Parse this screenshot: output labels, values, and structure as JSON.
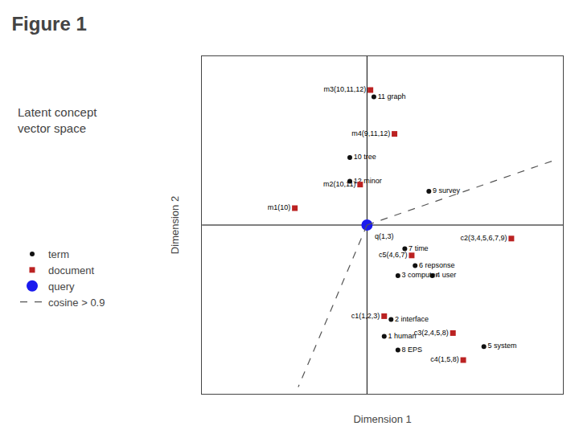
{
  "chart_data": {
    "type": "scatter",
    "title": "Figure 1",
    "subtitle": "Latent concept\nvector space",
    "xlabel": "Dimension 1",
    "ylabel": "Dimension 2",
    "xlim": [
      0.0,
      1.05
    ],
    "ylim": [
      0.0,
      1.0
    ],
    "tick_labels": false,
    "grid": false,
    "legend": "left",
    "axhline": 0.5,
    "axvline": 0.48,
    "series": [
      {
        "name": "term",
        "type": "scatter",
        "marker": "circle",
        "color": "#111111",
        "x": [
          0.5,
          0.43,
          0.43,
          0.66,
          0.59,
          0.62,
          0.57,
          0.67,
          0.55,
          0.53,
          0.57,
          0.82
        ],
        "values": [
          0.88,
          0.7,
          0.63,
          0.6,
          0.43,
          0.38,
          0.35,
          0.35,
          0.22,
          0.17,
          0.13,
          0.14
        ],
        "labels": [
          "11 graph",
          "10 tree",
          "12 minor",
          "9 survey",
          "7 time",
          "6 repsonse",
          "3 computer",
          "4 user",
          "2 interface",
          "1 human",
          "8 EPS",
          "5 system"
        ]
      },
      {
        "name": "document",
        "type": "scatter",
        "marker": "square",
        "color": "#bb2222",
        "x": [
          0.49,
          0.56,
          0.46,
          0.27,
          0.61,
          0.53,
          0.73,
          0.76,
          0.9
        ],
        "values": [
          0.9,
          0.77,
          0.62,
          0.55,
          0.41,
          0.23,
          0.18,
          0.1,
          0.46
        ],
        "labels": [
          "m3(10,11,12)",
          "m4(9,11,12)",
          "m2(10,11)",
          "m1(10)",
          "c5(4,6,7)",
          "c1(1,2,3)",
          "c3(2,4,5,8)",
          "c4(1,5,8)",
          "c2(3,4,5,6,7,9)"
        ]
      },
      {
        "name": "query",
        "type": "scatter",
        "marker": "circle",
        "color": "#1a1aee",
        "x": [
          0.48
        ],
        "values": [
          0.5
        ],
        "labels": [
          "q(1,3)"
        ]
      },
      {
        "name": "cosine > 0.9",
        "type": "line",
        "line_style": "dashed",
        "color": "#555555",
        "x": [
          0.48,
          1.02,
          null,
          0.48,
          0.28
        ],
        "values": [
          0.5,
          0.69,
          null,
          0.5,
          0.02
        ]
      }
    ]
  }
}
